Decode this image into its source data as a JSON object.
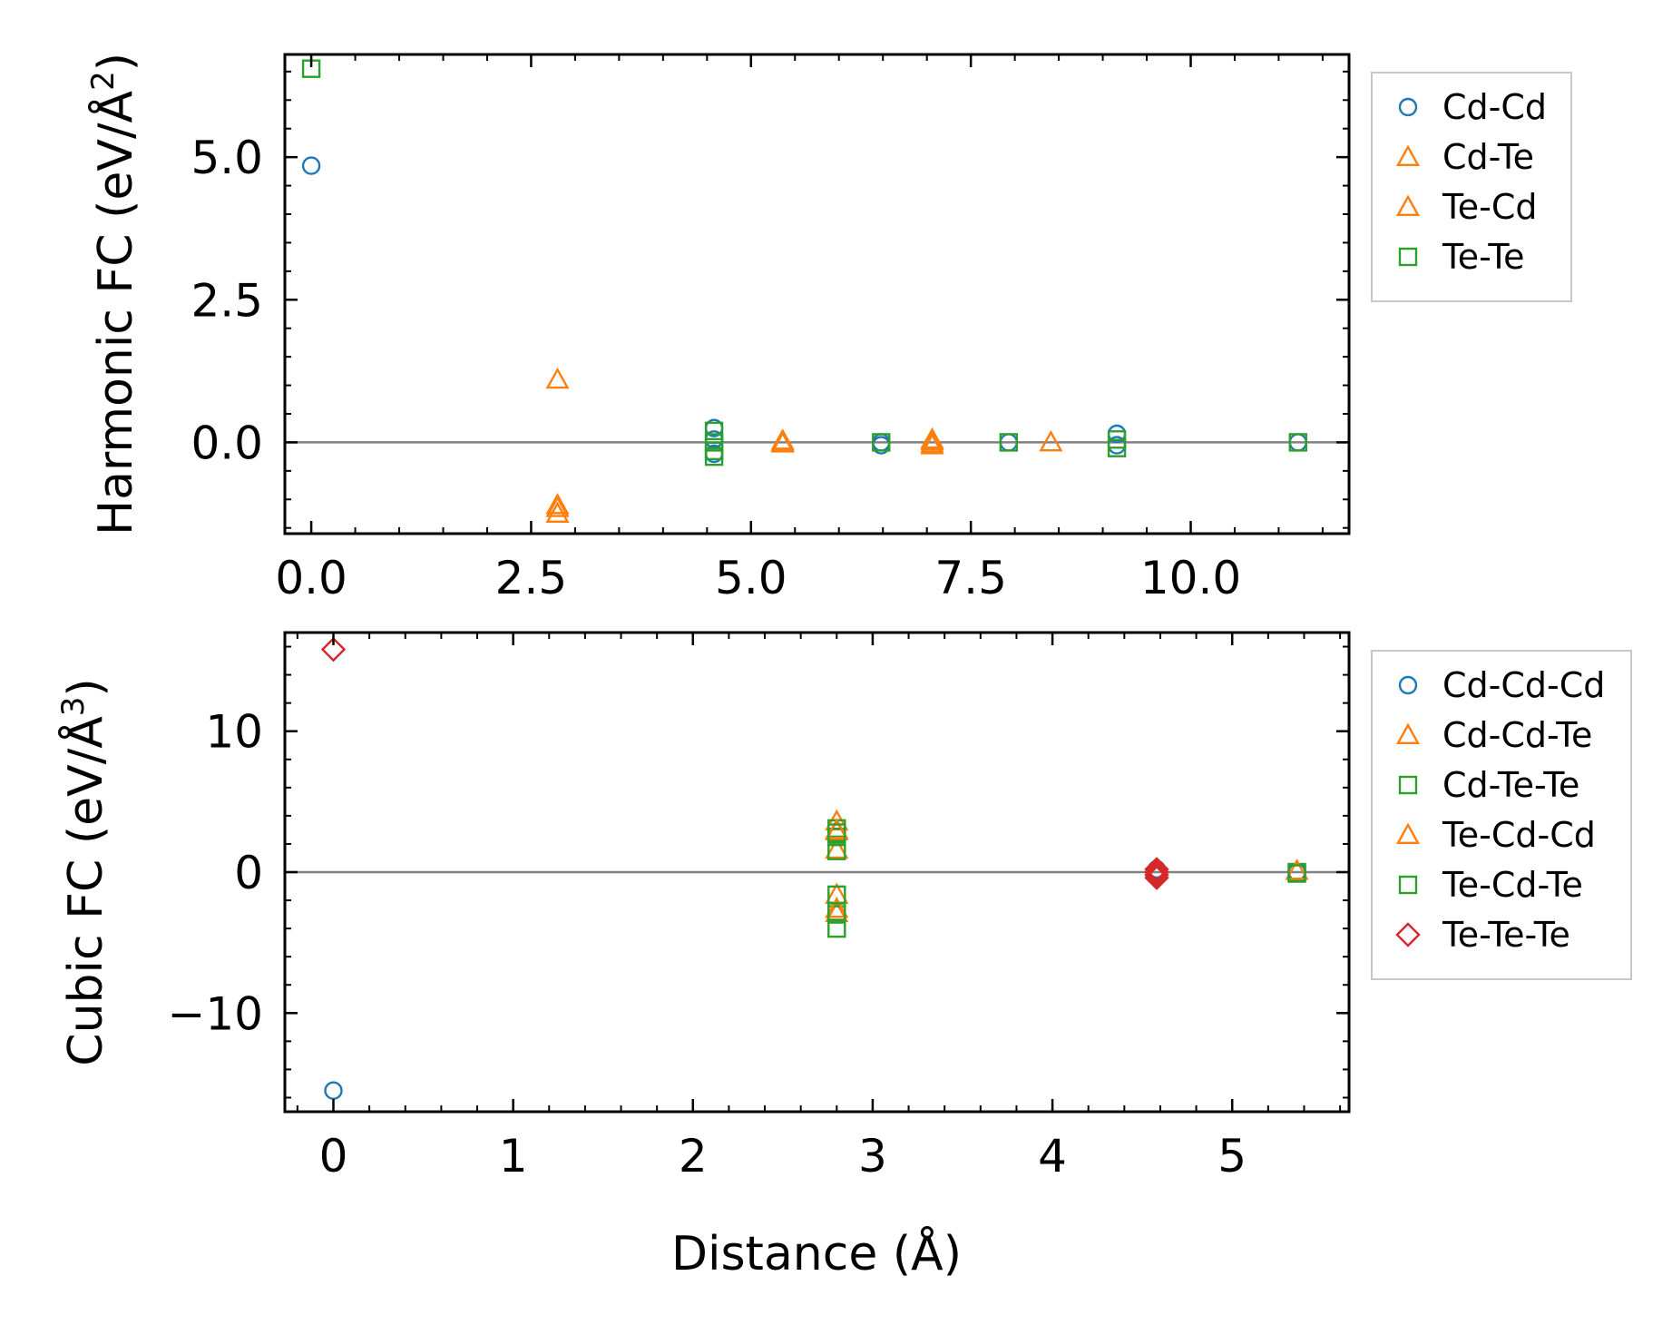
{
  "chart_data": [
    {
      "type": "scatter",
      "ylabel_base": "Harmonic FC (eV/Å",
      "ylabel_sup": "2",
      "ylabel_tail": ")",
      "xlabel": "",
      "xlim": [
        -0.3,
        11.8
      ],
      "ylim": [
        -1.6,
        6.8
      ],
      "xticks": [
        0.0,
        2.5,
        5.0,
        7.5,
        10.0
      ],
      "xtick_labels": [
        "0.0",
        "2.5",
        "5.0",
        "7.5",
        "10.0"
      ],
      "yticks": [
        0.0,
        2.5,
        5.0
      ],
      "ytick_labels": [
        "0.0",
        "2.5",
        "5.0"
      ],
      "zero_line": true,
      "legend_position": "outside-right",
      "series": [
        {
          "name": "Cd-Cd",
          "marker": "circle",
          "color": "#1f77b4",
          "points": [
            [
              0.0,
              4.85
            ],
            [
              4.58,
              0.25
            ],
            [
              4.58,
              0.05
            ],
            [
              4.58,
              -0.2
            ],
            [
              6.48,
              0.0
            ],
            [
              6.48,
              -0.05
            ],
            [
              7.93,
              0.0
            ],
            [
              9.16,
              0.15
            ],
            [
              9.16,
              -0.05
            ],
            [
              11.22,
              0.0
            ]
          ]
        },
        {
          "name": "Cd-Te",
          "marker": "triangle",
          "color": "#ff7f0e",
          "points": [
            [
              2.8,
              1.1
            ],
            [
              2.8,
              -1.1
            ],
            [
              2.8,
              -1.25
            ],
            [
              5.36,
              0.03
            ],
            [
              5.36,
              0.0
            ],
            [
              7.06,
              0.05
            ],
            [
              7.06,
              -0.02
            ],
            [
              8.41,
              0.0
            ]
          ]
        },
        {
          "name": "Te-Cd",
          "marker": "triangle",
          "color": "#ff7f0e",
          "points": [
            [
              2.8,
              -1.15
            ],
            [
              5.36,
              -0.02
            ],
            [
              7.06,
              0.02
            ],
            [
              7.06,
              -0.05
            ]
          ]
        },
        {
          "name": "Te-Te",
          "marker": "square",
          "color": "#2ca02c",
          "points": [
            [
              0.0,
              6.55
            ],
            [
              4.58,
              0.2
            ],
            [
              4.58,
              0.0
            ],
            [
              4.58,
              -0.15
            ],
            [
              4.58,
              -0.25
            ],
            [
              6.48,
              0.0
            ],
            [
              7.93,
              0.0
            ],
            [
              9.16,
              0.05
            ],
            [
              9.16,
              -0.1
            ],
            [
              11.22,
              0.0
            ]
          ]
        }
      ]
    },
    {
      "type": "scatter",
      "ylabel_base": "Cubic FC (eV/Å",
      "ylabel_sup": "3",
      "ylabel_tail": ")",
      "xlabel": "Distance (Å)",
      "xlim": [
        -0.27,
        5.65
      ],
      "ylim": [
        -17,
        17
      ],
      "xticks": [
        0,
        1,
        2,
        3,
        4,
        5
      ],
      "xtick_labels": [
        "0",
        "1",
        "2",
        "3",
        "4",
        "5"
      ],
      "yticks": [
        -10,
        0,
        10
      ],
      "ytick_labels": [
        "−10",
        "0",
        "10"
      ],
      "zero_line": true,
      "legend_position": "outside-right",
      "series": [
        {
          "name": "Cd-Cd-Cd",
          "marker": "circle",
          "color": "#1f77b4",
          "points": [
            [
              0.0,
              -15.5
            ],
            [
              4.58,
              0.2
            ],
            [
              4.58,
              -0.1
            ],
            [
              5.36,
              0.0
            ]
          ]
        },
        {
          "name": "Cd-Cd-Te",
          "marker": "triangle",
          "color": "#ff7f0e",
          "points": [
            [
              2.8,
              3.6
            ],
            [
              2.8,
              2.9
            ],
            [
              2.8,
              1.6
            ],
            [
              2.8,
              -1.6
            ],
            [
              2.8,
              -2.9
            ]
          ]
        },
        {
          "name": "Cd-Te-Te",
          "marker": "square",
          "color": "#2ca02c",
          "points": [
            [
              2.8,
              3.1
            ],
            [
              2.8,
              2.5
            ],
            [
              2.8,
              1.5
            ],
            [
              2.8,
              -1.6
            ],
            [
              2.8,
              -3.0
            ],
            [
              2.8,
              -4.0
            ],
            [
              5.36,
              0.0
            ]
          ]
        },
        {
          "name": "Te-Cd-Cd",
          "marker": "triangle",
          "color": "#ff7f0e",
          "points": [
            [
              2.8,
              3.0
            ],
            [
              2.8,
              -2.6
            ],
            [
              5.36,
              0.1
            ]
          ]
        },
        {
          "name": "Te-Cd-Te",
          "marker": "square",
          "color": "#2ca02c",
          "points": [
            [
              2.8,
              2.8
            ],
            [
              2.8,
              -2.8
            ],
            [
              5.36,
              -0.1
            ]
          ]
        },
        {
          "name": "Te-Te-Te",
          "marker": "diamond",
          "color": "#d62728",
          "points": [
            [
              0.0,
              15.8
            ],
            [
              4.58,
              0.2
            ],
            [
              4.58,
              0.0
            ],
            [
              4.58,
              -0.2
            ],
            [
              4.58,
              -0.4
            ]
          ]
        }
      ]
    }
  ]
}
